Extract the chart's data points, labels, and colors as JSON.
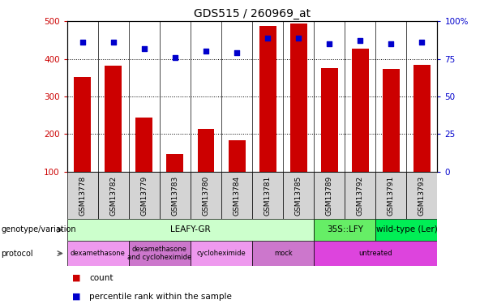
{
  "title": "GDS515 / 260969_at",
  "samples": [
    "GSM13778",
    "GSM13782",
    "GSM13779",
    "GSM13783",
    "GSM13780",
    "GSM13784",
    "GSM13781",
    "GSM13785",
    "GSM13789",
    "GSM13792",
    "GSM13791",
    "GSM13793"
  ],
  "counts": [
    352,
    381,
    244,
    148,
    215,
    183,
    487,
    493,
    375,
    428,
    374,
    385
  ],
  "percentiles": [
    86,
    86,
    82,
    76,
    80,
    79,
    89,
    89,
    85,
    87,
    85,
    86
  ],
  "ylim_left": [
    100,
    500
  ],
  "ylim_right": [
    0,
    100
  ],
  "yticks_left": [
    100,
    200,
    300,
    400,
    500
  ],
  "yticks_right": [
    0,
    25,
    50,
    75,
    100
  ],
  "bar_color": "#cc0000",
  "dot_color": "#0000cc",
  "genotype_groups": [
    {
      "label": "LEAFY-GR",
      "start": 0,
      "end": 8,
      "color": "#ccffcc"
    },
    {
      "label": "35S::LFY",
      "start": 8,
      "end": 10,
      "color": "#66ee66"
    },
    {
      "label": "wild-type (Ler)",
      "start": 10,
      "end": 12,
      "color": "#00ee55"
    }
  ],
  "protocol_groups": [
    {
      "label": "dexamethasone",
      "start": 0,
      "end": 2,
      "color": "#ee99ee"
    },
    {
      "label": "dexamethasone\nand cycloheximide",
      "start": 2,
      "end": 4,
      "color": "#cc77cc"
    },
    {
      "label": "cycloheximide",
      "start": 4,
      "end": 6,
      "color": "#ee99ee"
    },
    {
      "label": "mock",
      "start": 6,
      "end": 8,
      "color": "#cc77cc"
    },
    {
      "label": "untreated",
      "start": 8,
      "end": 12,
      "color": "#dd44dd"
    }
  ],
  "grid_color": "#888888",
  "tick_color_left": "#cc0000",
  "tick_color_right": "#0000cc",
  "title_fontsize": 10
}
